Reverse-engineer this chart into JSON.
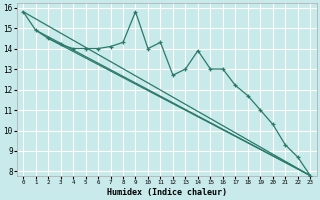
{
  "title": "",
  "xlabel": "Humidex (Indice chaleur)",
  "ylabel": "",
  "bg_color": "#c8eaea",
  "grid_color": "#ffffff",
  "line_color": "#2a7a6a",
  "xlim": [
    -0.5,
    23.5
  ],
  "ylim": [
    7.8,
    16.2
  ],
  "yticks": [
    8,
    9,
    10,
    11,
    12,
    13,
    14,
    15,
    16
  ],
  "xticks": [
    0,
    1,
    2,
    3,
    4,
    5,
    6,
    7,
    8,
    9,
    10,
    11,
    12,
    13,
    14,
    15,
    16,
    17,
    18,
    19,
    20,
    21,
    22,
    23
  ],
  "series": [
    {
      "x": [
        0,
        1,
        2,
        3,
        4,
        5,
        6,
        7,
        8,
        9,
        10,
        11,
        12,
        13,
        14,
        15,
        16,
        17,
        18,
        19,
        20,
        21,
        22,
        23
      ],
      "y": [
        15.8,
        14.9,
        14.5,
        14.2,
        14.0,
        14.0,
        14.0,
        14.1,
        14.3,
        15.8,
        14.0,
        14.3,
        12.7,
        13.0,
        13.9,
        13.0,
        13.0,
        12.2,
        11.7,
        11.0,
        10.3,
        9.3,
        8.7,
        7.8
      ]
    },
    {
      "x": [
        0,
        23
      ],
      "y": [
        15.8,
        7.8
      ]
    },
    {
      "x": [
        1,
        23
      ],
      "y": [
        14.9,
        7.8
      ]
    },
    {
      "x": [
        2,
        23
      ],
      "y": [
        14.5,
        7.8
      ]
    }
  ]
}
